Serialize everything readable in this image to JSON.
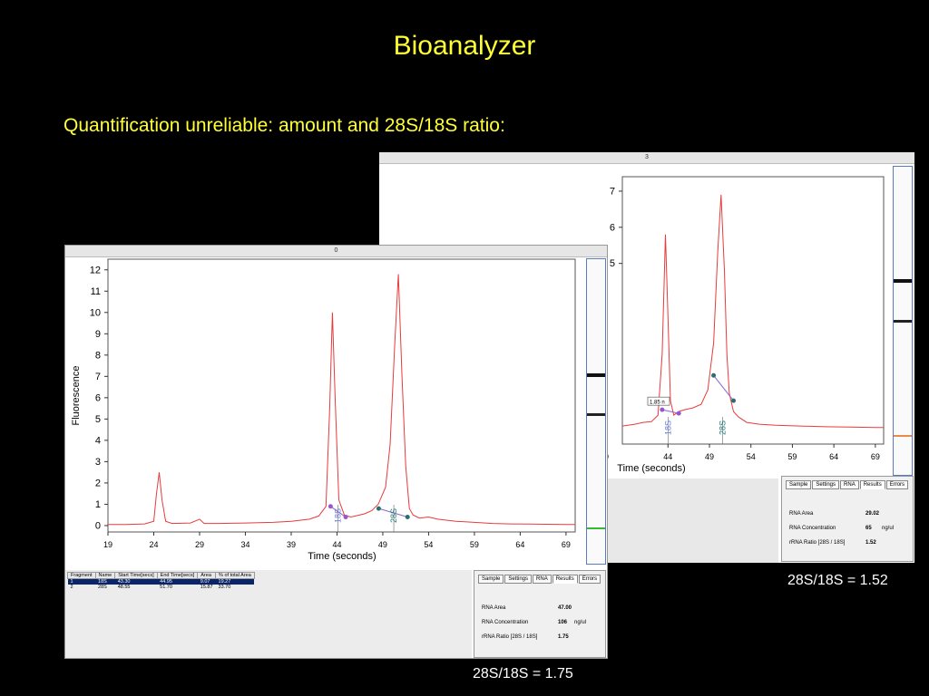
{
  "slide": {
    "title": "Bioanalyzer",
    "subtitle": "Quantification unreliable: amount and 28S/18S ratio:"
  },
  "colors": {
    "trace": "#e83b3b",
    "accent_text": "#ffff33",
    "peak_marker_purple": "#9955cc",
    "peak_marker_teal": "#2a6e6e"
  },
  "chart_data": [
    {
      "type": "line",
      "panel_index": "3",
      "ratio_caption": "28S/18S = 1.52",
      "xlabel": "Time (seconds)",
      "x_ticks": [
        44,
        49,
        54,
        59,
        64,
        69
      ],
      "x_ticks_partial": [
        19
      ],
      "y_ticks": [
        5,
        6,
        7
      ],
      "xlim": [
        38.5,
        70
      ],
      "ylim": [
        0,
        7.4
      ],
      "series": [
        {
          "x": [
            38.5,
            40,
            41,
            42,
            42.8,
            43.3,
            43.7,
            44,
            44.3,
            44.7,
            45.3,
            46,
            47,
            48,
            48.8,
            49.5,
            50,
            50.4,
            50.8,
            51.1,
            51.4,
            51.9,
            52.5,
            53.5,
            55,
            57,
            60,
            63,
            66,
            69,
            70
          ],
          "y": [
            0.5,
            0.55,
            0.6,
            0.62,
            0.8,
            2.5,
            5.8,
            3.5,
            1.2,
            0.8,
            0.9,
            0.95,
            1.0,
            1.1,
            1.5,
            2.8,
            5.3,
            6.9,
            4.8,
            2.5,
            1.4,
            0.9,
            0.75,
            0.6,
            0.55,
            0.52,
            0.5,
            0.48,
            0.47,
            0.46,
            0.46
          ]
        }
      ],
      "peaks": [
        {
          "name": "18S",
          "start_x": 43.3,
          "start_y": 0.95,
          "end_x": 45.3,
          "end_y": 0.85,
          "label_x": 44.0
        },
        {
          "name": "28S",
          "start_x": 49.5,
          "start_y": 1.9,
          "end_x": 51.9,
          "end_y": 1.2,
          "label_x": 50.6
        }
      ],
      "annotation": "1.85 n",
      "results": {
        "tabs": [
          "Sample",
          "Settings",
          "RNA",
          "Results",
          "Errors"
        ],
        "active_tab": "Results",
        "rows": [
          {
            "label": "RNA Area",
            "value": "29.02",
            "unit": ""
          },
          {
            "label": "RNA Concentration",
            "value": "65",
            "unit": "ng/ul"
          },
          {
            "label": "rRNA Ratio [28S / 18S]",
            "value": "1.52",
            "unit": ""
          }
        ]
      }
    },
    {
      "type": "line",
      "panel_index": "0",
      "ratio_caption": "28S/18S = 1.75",
      "ylabel": "Fluorescence",
      "xlabel": "Time (seconds)",
      "x_ticks": [
        19,
        24,
        29,
        34,
        39,
        44,
        49,
        54,
        59,
        64,
        69
      ],
      "y_ticks": [
        0,
        1,
        2,
        3,
        4,
        5,
        6,
        7,
        8,
        9,
        10,
        11,
        12
      ],
      "xlim": [
        19,
        70
      ],
      "ylim": [
        -0.3,
        12.5
      ],
      "series": [
        {
          "x": [
            19,
            21,
            23,
            24,
            24.3,
            24.6,
            24.9,
            25.3,
            26,
            28,
            29,
            29.5,
            31,
            34,
            37,
            39,
            41,
            42,
            42.8,
            43.2,
            43.5,
            43.8,
            44.2,
            44.8,
            45.5,
            46,
            47,
            47.8,
            48.5,
            49.3,
            49.8,
            50.3,
            50.7,
            51.1,
            51.5,
            51.9,
            52.3,
            53,
            54,
            55,
            57,
            59,
            61,
            63,
            65,
            67,
            69,
            70
          ],
          "y": [
            0.05,
            0.05,
            0.08,
            0.2,
            1.5,
            2.5,
            1.2,
            0.2,
            0.1,
            0.12,
            0.3,
            0.1,
            0.1,
            0.12,
            0.15,
            0.2,
            0.3,
            0.45,
            0.9,
            5.5,
            10.0,
            6.0,
            1.2,
            0.5,
            0.4,
            0.45,
            0.55,
            0.7,
            1.0,
            1.8,
            3.8,
            8.5,
            11.8,
            7.0,
            2.8,
            0.8,
            0.5,
            0.35,
            0.4,
            0.3,
            0.2,
            0.15,
            0.1,
            0.08,
            0.07,
            0.06,
            0.05,
            0.05
          ]
        }
      ],
      "peaks": [
        {
          "name": "18S",
          "start_x": 43.3,
          "start_y": 0.9,
          "end_x": 44.95,
          "end_y": 0.4,
          "label_x": 44.1
        },
        {
          "name": "28S",
          "start_x": 48.55,
          "start_y": 0.8,
          "end_x": 51.7,
          "end_y": 0.4,
          "label_x": 50.2
        }
      ],
      "fragment_table": {
        "headers": [
          "Fragment",
          "Name",
          "Start Time[secs]",
          "End Time[secs]",
          "Area",
          "% of total Area"
        ],
        "rows": [
          [
            "1",
            "18S",
            "43.30",
            "44.95",
            "9.07",
            "19.27"
          ],
          [
            "2",
            "28S",
            "48.55",
            "51.70",
            "15.87",
            "33.70"
          ]
        ]
      },
      "results": {
        "tabs": [
          "Sample",
          "Settings",
          "RNA",
          "Results",
          "Errors"
        ],
        "active_tab": "Results",
        "rows": [
          {
            "label": "RNA Area",
            "value": "47.00",
            "unit": ""
          },
          {
            "label": "RNA Concentration",
            "value": "106",
            "unit": "ng/ul"
          },
          {
            "label": "rRNA Ratio [28S / 18S]",
            "value": "1.75",
            "unit": ""
          }
        ]
      }
    }
  ]
}
